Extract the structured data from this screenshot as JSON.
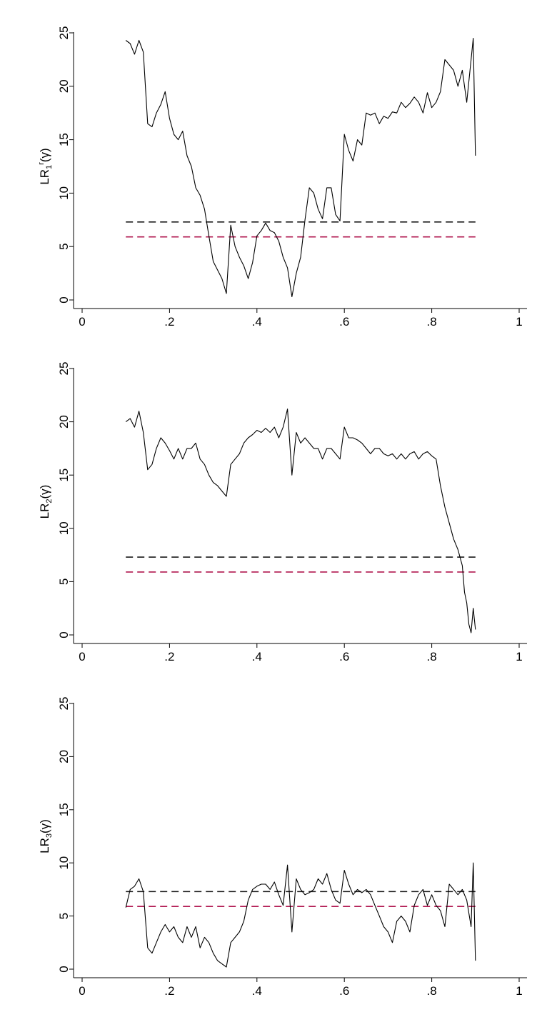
{
  "colors": {
    "series": "#000000",
    "ref_dark": "#1a1a1a",
    "ref_red": "#b0174f",
    "axis": "#000000"
  },
  "chart_data": [
    {
      "type": "line",
      "ylabel": {
        "main": "LR",
        "sub": "1",
        "sup": "r",
        "tail": "(γ)"
      },
      "xlim": [
        0,
        1
      ],
      "ylim": [
        0,
        25
      ],
      "xticks": [
        0,
        0.2,
        0.4,
        0.6,
        0.8,
        1
      ],
      "xtick_labels": [
        "0",
        ".2",
        ".4",
        ".6",
        ".8",
        "1"
      ],
      "yticks": [
        0,
        5,
        10,
        15,
        20,
        25
      ],
      "ytick_labels": [
        "0",
        "5",
        "10",
        "15",
        "20",
        "25"
      ],
      "grid": false,
      "ref_lines": [
        {
          "y": 7.3,
          "style": "dashed",
          "color": "ref_dark",
          "x": [
            0.1,
            0.9
          ]
        },
        {
          "y": 5.9,
          "style": "dashed",
          "color": "ref_red",
          "x": [
            0.1,
            0.9
          ]
        }
      ],
      "series": [
        {
          "x": [
            0.1,
            0.11,
            0.12,
            0.13,
            0.14,
            0.15,
            0.16,
            0.17,
            0.18,
            0.19,
            0.2,
            0.21,
            0.22,
            0.23,
            0.24,
            0.25,
            0.26,
            0.27,
            0.28,
            0.29,
            0.3,
            0.31,
            0.32,
            0.33,
            0.34,
            0.35,
            0.36,
            0.37,
            0.38,
            0.39,
            0.4,
            0.41,
            0.42,
            0.43,
            0.44,
            0.45,
            0.46,
            0.47,
            0.48,
            0.49,
            0.5,
            0.51,
            0.52,
            0.53,
            0.54,
            0.55,
            0.56,
            0.57,
            0.58,
            0.59,
            0.6,
            0.61,
            0.62,
            0.63,
            0.64,
            0.65,
            0.66,
            0.67,
            0.68,
            0.69,
            0.7,
            0.71,
            0.72,
            0.73,
            0.74,
            0.75,
            0.76,
            0.77,
            0.78,
            0.79,
            0.8,
            0.81,
            0.82,
            0.83,
            0.84,
            0.85,
            0.86,
            0.87,
            0.88,
            0.89,
            0.895,
            0.9
          ],
          "y": [
            24.3,
            24.0,
            23.0,
            24.3,
            23.2,
            16.5,
            16.2,
            17.5,
            18.3,
            19.5,
            17.0,
            15.5,
            15.0,
            15.8,
            13.5,
            12.5,
            10.5,
            9.8,
            8.5,
            6.0,
            3.6,
            2.8,
            2.0,
            0.6,
            7.0,
            5.0,
            4.0,
            3.2,
            2.0,
            3.5,
            6.0,
            6.5,
            7.2,
            6.5,
            6.3,
            5.5,
            4.0,
            3.0,
            0.3,
            2.5,
            4.0,
            7.5,
            10.5,
            10.0,
            8.5,
            7.6,
            10.5,
            10.5,
            8.0,
            7.4,
            15.5,
            14.0,
            13.0,
            15.0,
            14.5,
            17.5,
            17.3,
            17.5,
            16.5,
            17.2,
            17.0,
            17.6,
            17.5,
            18.5,
            18.0,
            18.4,
            19.0,
            18.5,
            17.5,
            19.4,
            18.0,
            18.5,
            19.5,
            22.5,
            22.0,
            21.5,
            20.0,
            21.5,
            18.5,
            22.5,
            24.5,
            13.5
          ]
        }
      ]
    },
    {
      "type": "line",
      "ylabel": {
        "main": "LR",
        "sub": "2",
        "sup": "",
        "tail": "(γ)"
      },
      "xlim": [
        0,
        1
      ],
      "ylim": [
        0,
        25
      ],
      "xticks": [
        0,
        0.2,
        0.4,
        0.6,
        0.8,
        1
      ],
      "xtick_labels": [
        "0",
        ".2",
        ".4",
        ".6",
        ".8",
        "1"
      ],
      "yticks": [
        0,
        5,
        10,
        15,
        20,
        25
      ],
      "ytick_labels": [
        "0",
        "5",
        "10",
        "15",
        "20",
        "25"
      ],
      "grid": false,
      "ref_lines": [
        {
          "y": 7.3,
          "style": "dashed",
          "color": "ref_dark",
          "x": [
            0.1,
            0.9
          ]
        },
        {
          "y": 5.9,
          "style": "dashed",
          "color": "ref_red",
          "x": [
            0.1,
            0.9
          ]
        }
      ],
      "series": [
        {
          "x": [
            0.1,
            0.11,
            0.12,
            0.13,
            0.14,
            0.15,
            0.16,
            0.17,
            0.18,
            0.19,
            0.2,
            0.21,
            0.22,
            0.23,
            0.24,
            0.25,
            0.26,
            0.27,
            0.28,
            0.29,
            0.3,
            0.31,
            0.32,
            0.33,
            0.34,
            0.35,
            0.36,
            0.37,
            0.38,
            0.39,
            0.4,
            0.41,
            0.42,
            0.43,
            0.44,
            0.45,
            0.46,
            0.47,
            0.48,
            0.49,
            0.5,
            0.51,
            0.52,
            0.53,
            0.54,
            0.55,
            0.56,
            0.57,
            0.58,
            0.59,
            0.6,
            0.61,
            0.62,
            0.63,
            0.64,
            0.65,
            0.66,
            0.67,
            0.68,
            0.69,
            0.7,
            0.71,
            0.72,
            0.73,
            0.74,
            0.75,
            0.76,
            0.77,
            0.78,
            0.79,
            0.8,
            0.81,
            0.82,
            0.83,
            0.84,
            0.85,
            0.86,
            0.87,
            0.875,
            0.88,
            0.885,
            0.89,
            0.895,
            0.9
          ],
          "y": [
            20.0,
            20.3,
            19.5,
            21.0,
            19.0,
            15.5,
            16.0,
            17.5,
            18.5,
            18.0,
            17.3,
            16.5,
            17.5,
            16.5,
            17.5,
            17.5,
            18.0,
            16.5,
            16.0,
            15.0,
            14.3,
            14.0,
            13.5,
            13.0,
            16.0,
            16.5,
            17.0,
            18.0,
            18.5,
            18.8,
            19.2,
            19.0,
            19.4,
            19.0,
            19.5,
            18.5,
            19.5,
            21.2,
            15.0,
            19.0,
            18.0,
            18.5,
            18.0,
            17.5,
            17.5,
            16.5,
            17.5,
            17.5,
            17.0,
            16.5,
            19.5,
            18.5,
            18.5,
            18.3,
            18.0,
            17.5,
            17.0,
            17.5,
            17.5,
            17.0,
            16.8,
            17.0,
            16.5,
            17.0,
            16.5,
            17.0,
            17.2,
            16.5,
            17.0,
            17.2,
            16.8,
            16.5,
            14.0,
            12.0,
            10.5,
            9.0,
            8.0,
            6.5,
            4.0,
            3.0,
            1.0,
            0.2,
            2.5,
            0.5
          ]
        }
      ]
    },
    {
      "type": "line",
      "ylabel": {
        "main": "LR",
        "sub": "3",
        "sup": "",
        "tail": "(γ)"
      },
      "xlim": [
        0,
        1
      ],
      "ylim": [
        0,
        25
      ],
      "xticks": [
        0,
        0.2,
        0.4,
        0.6,
        0.8,
        1
      ],
      "xtick_labels": [
        "0",
        ".2",
        ".4",
        ".6",
        ".8",
        "1"
      ],
      "yticks": [
        0,
        5,
        10,
        15,
        20,
        25
      ],
      "ytick_labels": [
        "0",
        "5",
        "10",
        "15",
        "20",
        "25"
      ],
      "grid": false,
      "ref_lines": [
        {
          "y": 7.3,
          "style": "dashed",
          "color": "ref_dark",
          "x": [
            0.1,
            0.9
          ]
        },
        {
          "y": 5.9,
          "style": "dashed",
          "color": "ref_red",
          "x": [
            0.1,
            0.9
          ]
        }
      ],
      "series": [
        {
          "x": [
            0.1,
            0.11,
            0.12,
            0.13,
            0.14,
            0.15,
            0.16,
            0.17,
            0.18,
            0.19,
            0.2,
            0.21,
            0.22,
            0.23,
            0.24,
            0.25,
            0.26,
            0.27,
            0.28,
            0.29,
            0.3,
            0.31,
            0.32,
            0.33,
            0.34,
            0.35,
            0.36,
            0.37,
            0.38,
            0.39,
            0.4,
            0.41,
            0.42,
            0.43,
            0.44,
            0.45,
            0.46,
            0.47,
            0.48,
            0.49,
            0.5,
            0.51,
            0.52,
            0.53,
            0.54,
            0.55,
            0.56,
            0.57,
            0.58,
            0.59,
            0.6,
            0.61,
            0.62,
            0.63,
            0.64,
            0.65,
            0.66,
            0.67,
            0.68,
            0.69,
            0.7,
            0.71,
            0.72,
            0.73,
            0.74,
            0.75,
            0.76,
            0.77,
            0.78,
            0.79,
            0.8,
            0.81,
            0.82,
            0.83,
            0.84,
            0.85,
            0.86,
            0.87,
            0.88,
            0.89,
            0.895,
            0.9
          ],
          "y": [
            5.8,
            7.5,
            7.8,
            8.5,
            7.3,
            2.0,
            1.5,
            2.5,
            3.5,
            4.2,
            3.5,
            4.0,
            3.0,
            2.5,
            4.0,
            3.0,
            4.0,
            2.0,
            3.0,
            2.5,
            1.5,
            0.8,
            0.5,
            0.2,
            2.5,
            3.0,
            3.5,
            4.5,
            6.5,
            7.5,
            7.8,
            8.0,
            8.0,
            7.5,
            8.2,
            7.0,
            6.0,
            9.8,
            3.5,
            8.5,
            7.5,
            7.0,
            7.2,
            7.5,
            8.5,
            8.0,
            9.0,
            7.5,
            6.5,
            6.2,
            9.3,
            8.0,
            7.0,
            7.5,
            7.2,
            7.5,
            7.0,
            6.0,
            5.0,
            4.0,
            3.5,
            2.5,
            4.5,
            5.0,
            4.5,
            3.5,
            6.0,
            7.0,
            7.5,
            6.0,
            7.0,
            6.0,
            5.5,
            4.0,
            8.0,
            7.5,
            7.0,
            7.5,
            6.5,
            4.0,
            10.0,
            0.8
          ]
        }
      ]
    }
  ]
}
